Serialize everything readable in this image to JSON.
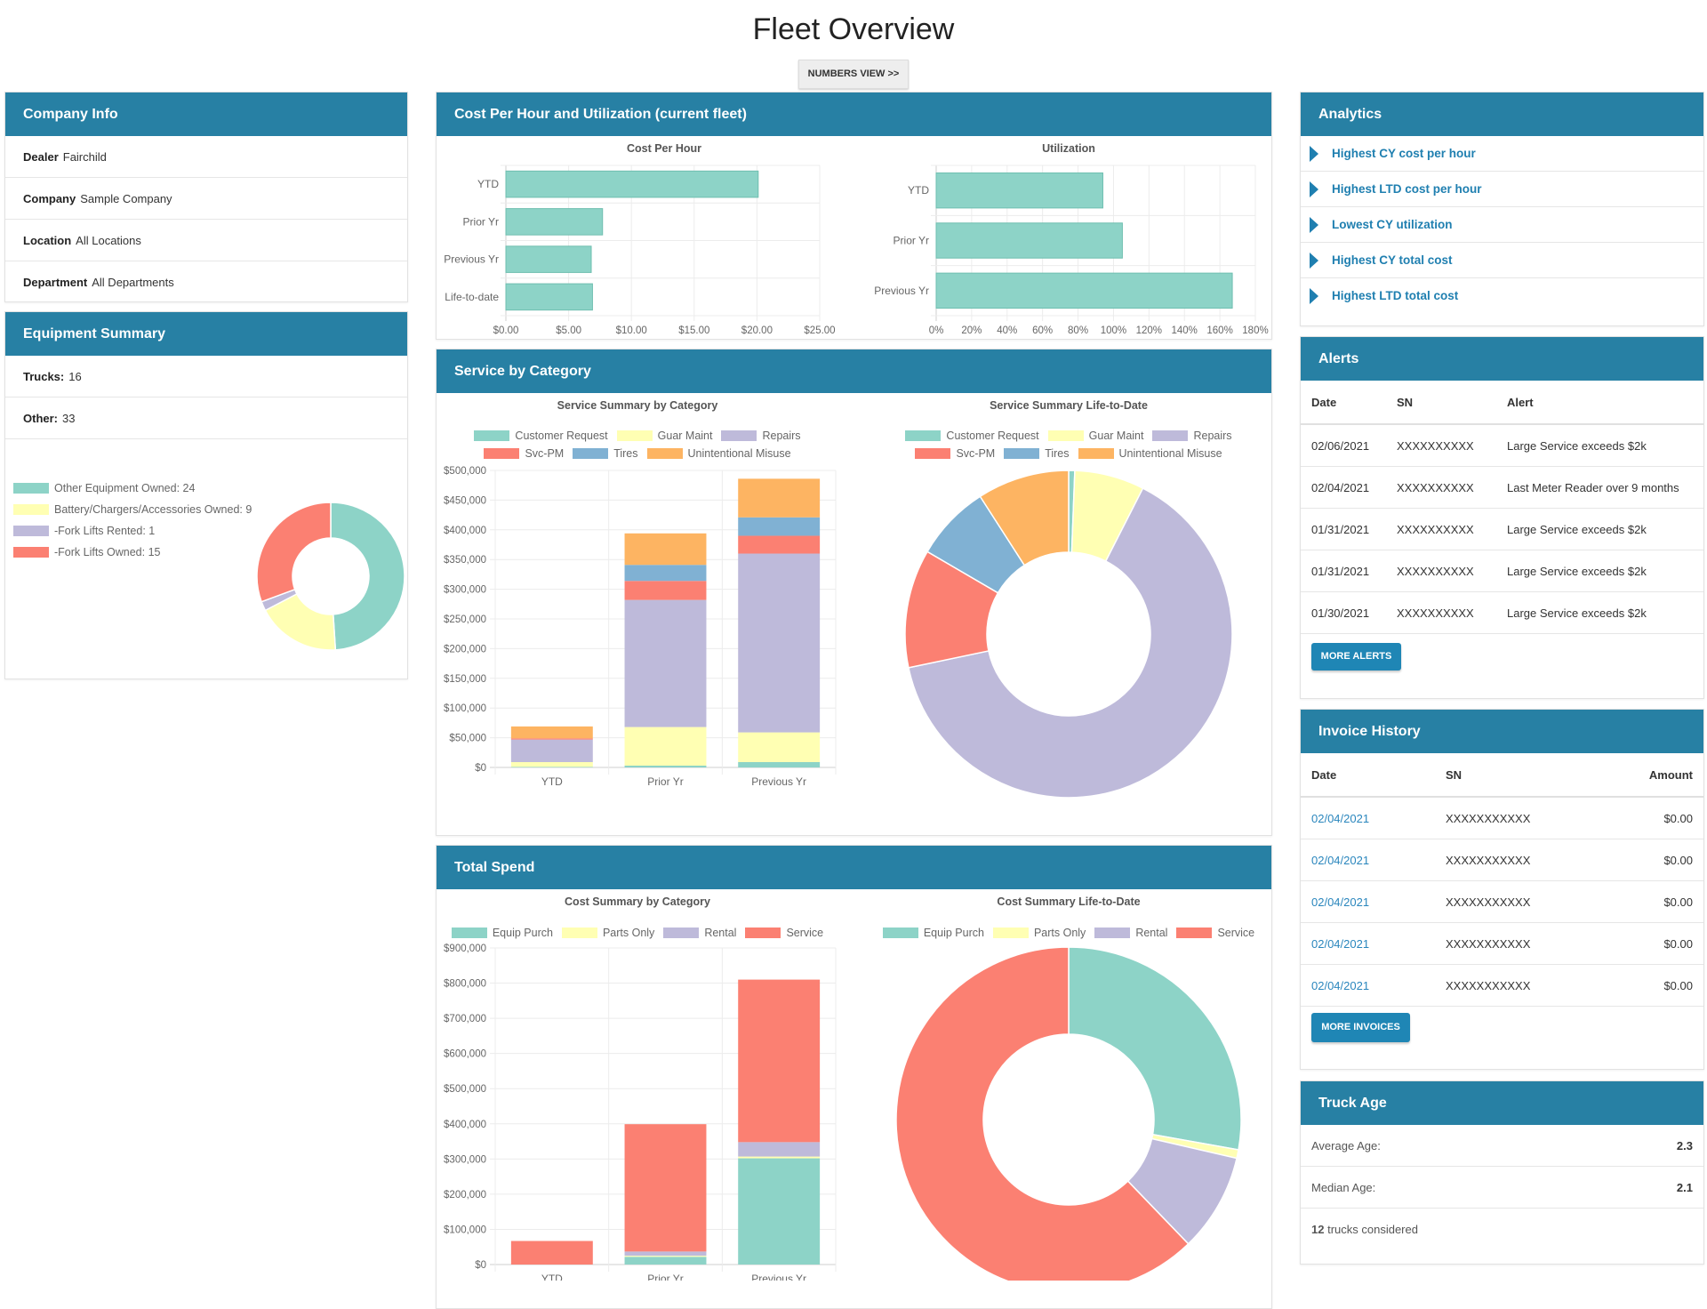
{
  "page_title": "Fleet Overview",
  "numbers_view_label": "NUMBERS VIEW >>",
  "company_info": {
    "title": "Company Info",
    "rows": [
      {
        "label": "Dealer",
        "value": "Fairchild"
      },
      {
        "label": "Company",
        "value": "Sample Company"
      },
      {
        "label": "Location",
        "value": "All Locations"
      },
      {
        "label": "Department",
        "value": "All Departments"
      }
    ]
  },
  "equipment_summary": {
    "title": "Equipment Summary",
    "rows": [
      {
        "label": "Trucks:",
        "value": "16"
      },
      {
        "label": "Other:",
        "value": "33"
      }
    ]
  },
  "cost_panel_title": "Cost Per Hour and Utilization (current fleet)",
  "service_panel_title": "Service by Category",
  "spend_panel_title": "Total Spend",
  "analytics": {
    "title": "Analytics",
    "icon": "triangle-right-icon",
    "items": [
      "Highest CY cost per hour",
      "Highest LTD cost per hour",
      "Lowest CY utilization",
      "Highest CY total cost",
      "Highest LTD total cost"
    ]
  },
  "alerts": {
    "title": "Alerts",
    "columns": [
      "Date",
      "SN",
      "Alert"
    ],
    "rows": [
      [
        "02/06/2021",
        "XXXXXXXXXX",
        "Large Service exceeds $2k"
      ],
      [
        "02/04/2021",
        "XXXXXXXXXX",
        "Last Meter Reader over 9 months"
      ],
      [
        "01/31/2021",
        "XXXXXXXXXX",
        "Large Service exceeds $2k"
      ],
      [
        "01/31/2021",
        "XXXXXXXXXX",
        "Large Service exceeds $2k"
      ],
      [
        "01/30/2021",
        "XXXXXXXXXX",
        "Large Service exceeds $2k"
      ]
    ],
    "button": "MORE ALERTS"
  },
  "invoices": {
    "title": "Invoice History",
    "columns": [
      "Date",
      "SN",
      "Amount"
    ],
    "rows": [
      [
        "02/04/2021",
        "XXXXXXXXXXX",
        "$0.00"
      ],
      [
        "02/04/2021",
        "XXXXXXXXXXX",
        "$0.00"
      ],
      [
        "02/04/2021",
        "XXXXXXXXXXX",
        "$0.00"
      ],
      [
        "02/04/2021",
        "XXXXXXXXXXX",
        "$0.00"
      ],
      [
        "02/04/2021",
        "XXXXXXXXXXX",
        "$0.00"
      ]
    ],
    "button": "MORE INVOICES"
  },
  "truck_age": {
    "title": "Truck Age",
    "average_label": "Average Age:",
    "average": "2.3",
    "median_label": "Median Age:",
    "median": "2.1",
    "count": "12",
    "count_suffix": "trucks considered"
  },
  "colors": {
    "header": "#2780a4",
    "teal": "#8dd3c7",
    "yellow": "#ffffb3",
    "lavender": "#bebada",
    "red": "#fb8072",
    "blue": "#80b1d3",
    "orange": "#fdb462"
  },
  "chart_data": [
    {
      "id": "equipment",
      "type": "pie",
      "donut": true,
      "legend": "left",
      "labels": [
        "Other Equipment Owned: 24",
        "Battery/Chargers/Accessories Owned: 9",
        "-Fork Lifts Rented: 1",
        "-Fork Lifts Owned: 15"
      ],
      "values": [
        24,
        9,
        1,
        15
      ],
      "colors": [
        "#8dd3c7",
        "#ffffb3",
        "#bebada",
        "#fb8072"
      ]
    },
    {
      "id": "cost_per_hour",
      "type": "bar",
      "orientation": "horizontal",
      "title": "Cost Per Hour",
      "categories": [
        "YTD",
        "Prior Yr",
        "Previous Yr",
        "Life-to-date"
      ],
      "values": [
        20.1,
        7.7,
        6.8,
        6.9
      ],
      "xlim": [
        0,
        25
      ],
      "xticks": [
        "$0.00",
        "$5.00",
        "$10.00",
        "$15.00",
        "$20.00",
        "$25.00"
      ],
      "color": "#8dd3c7",
      "grid": true
    },
    {
      "id": "utilization",
      "type": "bar",
      "orientation": "horizontal",
      "title": "Utilization",
      "categories": [
        "YTD",
        "Prior Yr",
        "Previous Yr"
      ],
      "values": [
        94,
        105,
        167
      ],
      "xlim": [
        0,
        180
      ],
      "xticks": [
        "0%",
        "20%",
        "40%",
        "60%",
        "80%",
        "100%",
        "120%",
        "140%",
        "160%",
        "180%"
      ],
      "color": "#8dd3c7",
      "grid": true
    },
    {
      "id": "service_by_category",
      "type": "bar",
      "stacked": true,
      "title": "Service Summary by Category",
      "legend": "top",
      "categories": [
        "YTD",
        "Prior Yr",
        "Previous Yr"
      ],
      "ylim": [
        0,
        500000
      ],
      "yticks": [
        "$0",
        "$50,000",
        "$100,000",
        "$150,000",
        "$200,000",
        "$250,000",
        "$300,000",
        "$350,000",
        "$400,000",
        "$450,000",
        "$500,000"
      ],
      "series": [
        {
          "name": "Customer Request",
          "color": "#8dd3c7",
          "values": [
            1000,
            3000,
            9000
          ]
        },
        {
          "name": "Guar Maint",
          "color": "#ffffb3",
          "values": [
            8000,
            65000,
            50000
          ]
        },
        {
          "name": "Repairs",
          "color": "#bebada",
          "values": [
            38000,
            214000,
            301000
          ]
        },
        {
          "name": "Svc-PM",
          "color": "#fb8072",
          "values": [
            2000,
            32000,
            30000
          ]
        },
        {
          "name": "Tires",
          "color": "#80b1d3",
          "values": [
            0,
            27000,
            31000
          ]
        },
        {
          "name": "Unintentional Misuse",
          "color": "#fdb462",
          "values": [
            20000,
            53000,
            65000
          ]
        }
      ],
      "grid": true
    },
    {
      "id": "service_ltd",
      "type": "pie",
      "donut": true,
      "title": "Service Summary Life-to-Date",
      "legend": "top",
      "labels": [
        "Customer Request",
        "Guar Maint",
        "Repairs",
        "Svc-PM",
        "Tires",
        "Unintentional Misuse"
      ],
      "values": [
        0.6,
        6.9,
        64.2,
        11.7,
        7.5,
        9.1
      ],
      "unit": "%",
      "colors": [
        "#8dd3c7",
        "#ffffb3",
        "#bebada",
        "#fb8072",
        "#80b1d3",
        "#fdb462"
      ]
    },
    {
      "id": "cost_by_category",
      "type": "bar",
      "stacked": true,
      "title": "Cost Summary by Category",
      "legend": "top",
      "categories": [
        "YTD",
        "Prior Yr",
        "Previous Yr"
      ],
      "ylim": [
        0,
        900000
      ],
      "yticks": [
        "$0",
        "$100,000",
        "$200,000",
        "$300,000",
        "$400,000",
        "$500,000",
        "$600,000",
        "$700,000",
        "$800,000",
        "$900,000"
      ],
      "series": [
        {
          "name": "Equip Purch",
          "color": "#8dd3c7",
          "values": [
            0,
            22000,
            302000
          ]
        },
        {
          "name": "Parts Only",
          "color": "#ffffb3",
          "values": [
            0,
            3000,
            5000
          ]
        },
        {
          "name": "Rental",
          "color": "#bebada",
          "values": [
            0,
            12000,
            41000
          ]
        },
        {
          "name": "Service",
          "color": "#fb8072",
          "values": [
            67000,
            362000,
            462000
          ]
        }
      ],
      "grid": true
    },
    {
      "id": "cost_ltd",
      "type": "pie",
      "donut": true,
      "title": "Cost Summary Life-to-Date",
      "legend": "top",
      "labels": [
        "Equip Purch",
        "Parts Only",
        "Rental",
        "Service"
      ],
      "values": [
        27.8,
        0.8,
        9.2,
        62.2
      ],
      "unit": "%",
      "colors": [
        "#8dd3c7",
        "#ffffb3",
        "#bebada",
        "#fb8072"
      ]
    }
  ]
}
